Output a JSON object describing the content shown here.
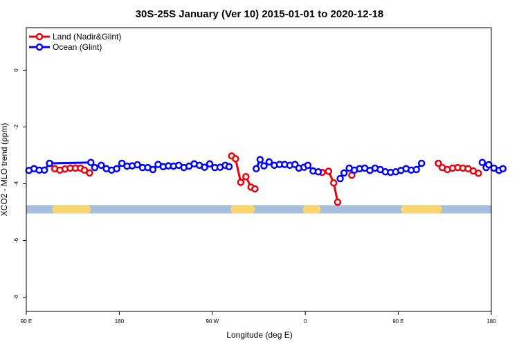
{
  "chart_data": {
    "type": "line",
    "title": "30S-25S January (Ver 10)   2015-01-01 to 2020-12-18",
    "xlabel": "Longitude (deg E)",
    "ylabel": "XCO2 - MLO trend (ppm)",
    "xlim": [
      90,
      450
    ],
    "ylim": [
      -8.5,
      1.5
    ],
    "x_ticks": [
      {
        "value": 90,
        "label": "90 E"
      },
      {
        "value": 162,
        "label": "180"
      },
      {
        "value": 234,
        "label": "90 W"
      },
      {
        "value": 306,
        "label": "0"
      },
      {
        "value": 378,
        "label": "90 E"
      },
      {
        "value": 450,
        "label": "180"
      }
    ],
    "y_ticks": [
      {
        "value": 0,
        "label": "0"
      },
      {
        "value": -2,
        "label": "-2"
      },
      {
        "value": -4,
        "label": "-4"
      },
      {
        "value": -6,
        "label": "-6"
      },
      {
        "value": -8,
        "label": "-8"
      }
    ],
    "legend_position": "top-left",
    "grid": false,
    "land_mask": {
      "y": -4.9,
      "ocean_color": "#a6bddb",
      "land_color": "#f9d56e",
      "land_ranges": [
        [
          110,
          140
        ],
        [
          248,
          267
        ],
        [
          304,
          318
        ],
        [
          380,
          412
        ]
      ]
    },
    "series": [
      {
        "name": "Land (Nadir&Glint)",
        "color": "#e8000b",
        "segments": [
          [
            [
              108,
              -3.28
            ],
            [
              112,
              -3.47
            ],
            [
              116,
              -3.52
            ],
            [
              120,
              -3.48
            ],
            [
              124,
              -3.45
            ],
            [
              128,
              -3.45
            ],
            [
              132,
              -3.45
            ],
            [
              135,
              -3.52
            ],
            [
              139,
              -3.62
            ]
          ],
          [
            [
              249,
              -3.02
            ],
            [
              252,
              -3.12
            ],
            [
              256,
              -3.95
            ],
            [
              260,
              -3.75
            ],
            [
              264,
              -4.12
            ],
            [
              267,
              -4.18
            ]
          ],
          [
            [
              319,
              -3.6
            ],
            [
              324,
              -3.56
            ],
            [
              328,
              -3.97
            ],
            [
              331,
              -4.65
            ]
          ],
          [
            [
              342,
              -3.7
            ]
          ],
          [
            [
              409,
              -3.28
            ],
            [
              412,
              -3.43
            ],
            [
              416,
              -3.5
            ],
            [
              420,
              -3.45
            ],
            [
              424,
              -3.43
            ],
            [
              428,
              -3.45
            ],
            [
              432,
              -3.47
            ],
            [
              436,
              -3.55
            ],
            [
              440,
              -3.63
            ]
          ]
        ]
      },
      {
        "name": "Ocean (Glint)",
        "color": "#0000ff",
        "segments": [
          [
            [
              92,
              -3.53
            ],
            [
              96,
              -3.47
            ],
            [
              100,
              -3.52
            ],
            [
              104,
              -3.52
            ],
            [
              108,
              -3.28
            ],
            [
              140,
              -3.25
            ],
            [
              143,
              -3.43
            ],
            [
              148,
              -3.35
            ],
            [
              152,
              -3.47
            ],
            [
              156,
              -3.52
            ],
            [
              160,
              -3.47
            ],
            [
              164,
              -3.28
            ],
            [
              168,
              -3.38
            ],
            [
              172,
              -3.37
            ],
            [
              176,
              -3.33
            ],
            [
              180,
              -3.43
            ],
            [
              184,
              -3.43
            ],
            [
              188,
              -3.5
            ],
            [
              192,
              -3.32
            ],
            [
              196,
              -3.4
            ],
            [
              200,
              -3.37
            ],
            [
              204,
              -3.38
            ],
            [
              208,
              -3.35
            ],
            [
              212,
              -3.43
            ],
            [
              216,
              -3.38
            ],
            [
              220,
              -3.3
            ],
            [
              224,
              -3.35
            ],
            [
              228,
              -3.42
            ],
            [
              232,
              -3.3
            ],
            [
              236,
              -3.43
            ],
            [
              240,
              -3.42
            ],
            [
              244,
              -3.35
            ],
            [
              247,
              -3.4
            ]
          ],
          [
            [
              268,
              -3.47
            ],
            [
              271,
              -3.15
            ],
            [
              274,
              -3.37
            ],
            [
              278,
              -3.23
            ],
            [
              282,
              -3.35
            ],
            [
              286,
              -3.32
            ],
            [
              290,
              -3.32
            ],
            [
              294,
              -3.35
            ],
            [
              298,
              -3.32
            ],
            [
              301,
              -3.45
            ],
            [
              305,
              -3.42
            ],
            [
              308,
              -3.35
            ],
            [
              312,
              -3.55
            ],
            [
              316,
              -3.58
            ]
          ],
          [
            [
              333,
              -3.82
            ],
            [
              336,
              -3.62
            ],
            [
              340,
              -3.45
            ],
            [
              344,
              -3.52
            ],
            [
              348,
              -3.47
            ],
            [
              352,
              -3.45
            ],
            [
              356,
              -3.53
            ],
            [
              360,
              -3.45
            ],
            [
              364,
              -3.5
            ],
            [
              368,
              -3.58
            ],
            [
              372,
              -3.6
            ],
            [
              376,
              -3.58
            ],
            [
              380,
              -3.53
            ],
            [
              384,
              -3.47
            ],
            [
              388,
              -3.52
            ],
            [
              392,
              -3.5
            ],
            [
              396,
              -3.28
            ]
          ],
          [
            [
              443,
              -3.25
            ],
            [
              446,
              -3.43
            ],
            [
              448,
              -3.33
            ],
            [
              452,
              -3.45
            ],
            [
              456,
              -3.53
            ],
            [
              459,
              -3.47
            ]
          ]
        ]
      }
    ]
  }
}
